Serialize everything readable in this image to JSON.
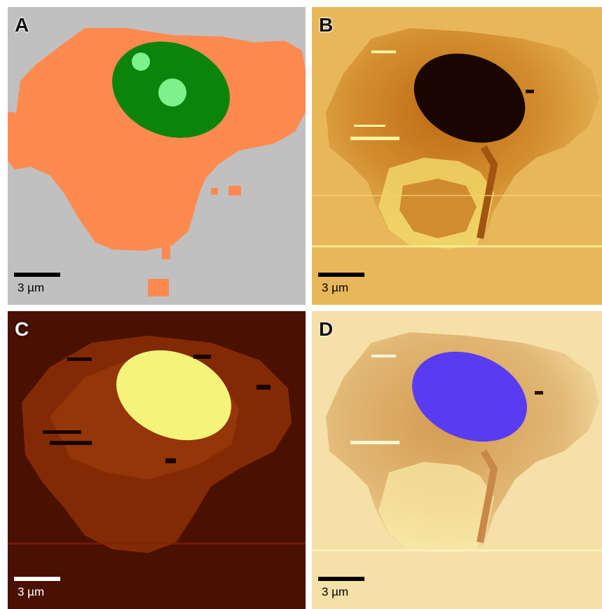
{
  "panels": [
    {
      "id": "A",
      "label": "A",
      "scale_label": "3 µm"
    },
    {
      "id": "B",
      "label": "B",
      "scale_label": "3 µm"
    },
    {
      "id": "C",
      "label": "C",
      "scale_label": "3 µm"
    },
    {
      "id": "D",
      "label": "D",
      "scale_label": "3 µm"
    }
  ],
  "colors": {
    "segmentation_background": "#c0c0c0",
    "segmentation_cytoplasm": "#ff8a50",
    "segmentation_nucleus": "#0b840b",
    "segmentation_nucleoli": "#7ef08c",
    "afm_bright": "#ffea7a",
    "afm_dark": "#1a0500",
    "fluorescence_background": "#5a1502",
    "fluorescence_nucleus": "#f4f47a",
    "overlay_nucleus": "#5a3cf0"
  }
}
